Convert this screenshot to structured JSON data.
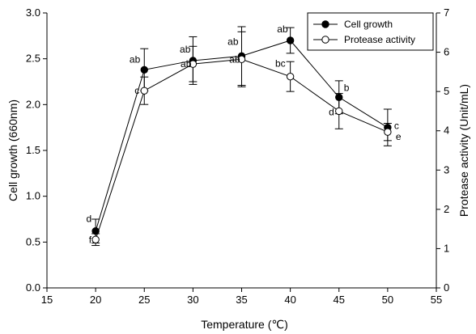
{
  "chart_data": {
    "type": "line",
    "title": "",
    "xlabel": "Temperature (℃)",
    "ylabel_left": "Cell growth (660nm)",
    "ylabel_right": "Protease activity (Unit/mL)",
    "xlim": [
      15,
      55
    ],
    "ylim_left": [
      0.0,
      3.0
    ],
    "ylim_right": [
      0,
      7
    ],
    "x_ticks": [
      "15",
      "20",
      "25",
      "30",
      "35",
      "40",
      "45",
      "50",
      "55"
    ],
    "y_left_ticks": [
      "0.0",
      "0.5",
      "1.0",
      "1.5",
      "2.0",
      "2.5",
      "3.0"
    ],
    "y_right_ticks": [
      "0",
      "1",
      "2",
      "3",
      "4",
      "5",
      "6",
      "7"
    ],
    "grid": false,
    "legend_position": "top-right",
    "x": [
      20,
      25,
      30,
      35,
      40,
      45,
      50
    ],
    "series": [
      {
        "name": "Cell growth",
        "axis": "left",
        "marker": "filled-circle",
        "values": [
          0.62,
          2.38,
          2.48,
          2.53,
          2.7,
          2.08,
          1.75
        ],
        "errors": [
          0.13,
          0.23,
          0.26,
          0.32,
          0.14,
          0.18,
          0.2
        ],
        "labels": [
          "d",
          "ab",
          "ab",
          "ab",
          "ab",
          "b",
          "c"
        ]
      },
      {
        "name": "Protease activity",
        "axis": "right",
        "marker": "open-circle",
        "values": [
          1.23,
          5.02,
          5.7,
          5.82,
          5.38,
          4.5,
          3.97
        ],
        "errors": [
          0.15,
          0.35,
          0.45,
          0.7,
          0.38,
          0.45,
          0.22
        ],
        "labels": [
          "f",
          "c",
          "ab",
          "ab",
          "bc",
          "d",
          "e"
        ]
      }
    ]
  }
}
